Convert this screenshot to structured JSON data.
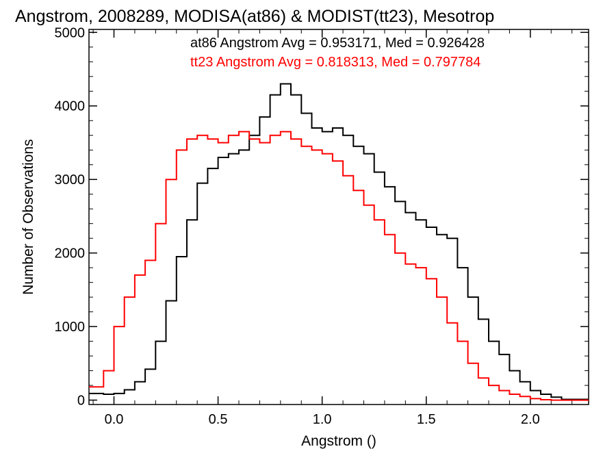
{
  "chart_data": {
    "type": "line",
    "title": "Angstrom, 2008289, MODISA(at86) & MODIST(tt23), Mesotrop",
    "xlabel": "Angstrom ()",
    "ylabel": "Number of Observations",
    "xlim": [
      -0.12,
      2.28
    ],
    "ylim": [
      -60,
      5040
    ],
    "x_ticks": [
      0.0,
      0.5,
      1.0,
      1.5,
      2.0
    ],
    "x_tick_labels": [
      "0.0",
      "0.5",
      "1.0",
      "1.5",
      "2.0"
    ],
    "y_ticks": [
      0,
      1000,
      2000,
      3000,
      4000,
      5000
    ],
    "y_tick_labels": [
      "0",
      "1000",
      "2000",
      "3000",
      "4000",
      "5000"
    ],
    "grid": false,
    "legend_position": "top-right",
    "annotations": [
      {
        "text": "at86 Angstrom Avg = 0.953171, Med = 0.926428",
        "color": "#000000"
      },
      {
        "text": "tt23 Angstrom Avg = 0.818313, Med = 0.797784",
        "color": "#ff0000"
      }
    ],
    "series": [
      {
        "color": "#000000",
        "x": [
          -0.12,
          -0.05,
          0.0,
          0.05,
          0.1,
          0.15,
          0.2,
          0.25,
          0.3,
          0.35,
          0.4,
          0.45,
          0.5,
          0.55,
          0.6,
          0.65,
          0.7,
          0.75,
          0.8,
          0.85,
          0.9,
          0.95,
          1.0,
          1.05,
          1.1,
          1.15,
          1.2,
          1.25,
          1.3,
          1.35,
          1.4,
          1.45,
          1.5,
          1.55,
          1.6,
          1.65,
          1.7,
          1.75,
          1.8,
          1.85,
          1.9,
          1.95,
          2.0,
          2.05,
          2.1,
          2.15
        ],
        "y": [
          90,
          80,
          90,
          140,
          250,
          420,
          800,
          1350,
          1950,
          2450,
          2950,
          3150,
          3300,
          3350,
          3400,
          3600,
          3850,
          4150,
          4300,
          4150,
          3900,
          3700,
          3650,
          3700,
          3600,
          3450,
          3350,
          3100,
          2900,
          2700,
          2550,
          2450,
          2350,
          2250,
          2200,
          1800,
          1400,
          1100,
          800,
          620,
          400,
          250,
          130,
          80,
          40,
          10
        ]
      },
      {
        "color": "#ff0000",
        "x": [
          -0.12,
          -0.05,
          0.0,
          0.05,
          0.1,
          0.15,
          0.2,
          0.25,
          0.3,
          0.35,
          0.4,
          0.45,
          0.5,
          0.55,
          0.6,
          0.65,
          0.7,
          0.75,
          0.8,
          0.85,
          0.9,
          0.95,
          1.0,
          1.05,
          1.1,
          1.15,
          1.2,
          1.25,
          1.3,
          1.35,
          1.4,
          1.45,
          1.5,
          1.55,
          1.6,
          1.65,
          1.7,
          1.75,
          1.8,
          1.85,
          1.9,
          1.95,
          2.0,
          2.05,
          2.1,
          2.15
        ],
        "y": [
          180,
          400,
          1000,
          1400,
          1700,
          1900,
          2400,
          3000,
          3400,
          3550,
          3600,
          3550,
          3500,
          3600,
          3650,
          3550,
          3500,
          3600,
          3650,
          3550,
          3450,
          3400,
          3350,
          3250,
          3050,
          2850,
          2650,
          2450,
          2250,
          2000,
          1850,
          1800,
          1650,
          1400,
          1050,
          800,
          500,
          300,
          200,
          130,
          80,
          50,
          20,
          5,
          0,
          0
        ]
      }
    ]
  }
}
